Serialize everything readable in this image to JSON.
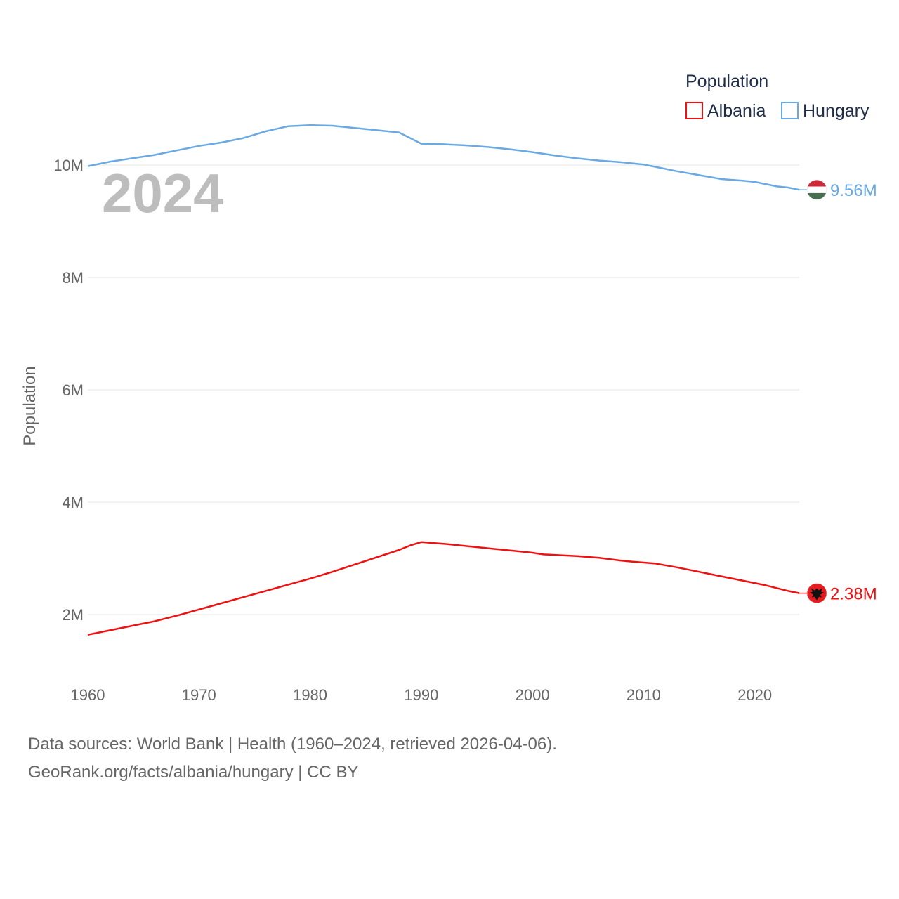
{
  "chart_data": {
    "type": "line",
    "title": "",
    "year_label": "2024",
    "xlabel": "",
    "ylabel": "Population",
    "xlim": [
      1960,
      2024
    ],
    "ylim": [
      1000000,
      11000000
    ],
    "x_ticks": [
      1960,
      1970,
      1980,
      1990,
      2000,
      2010,
      2020
    ],
    "x_tick_labels": [
      "1960",
      "1970",
      "1980",
      "1990",
      "2000",
      "2010",
      "2020"
    ],
    "y_ticks": [
      2000000,
      4000000,
      6000000,
      8000000,
      10000000
    ],
    "y_tick_labels": [
      "2M",
      "4M",
      "6M",
      "8M",
      "10M"
    ],
    "legend": {
      "title": "Population",
      "position": "top-right"
    },
    "series": [
      {
        "name": "Albania",
        "color": "#ee1111",
        "end_label": "2.38M",
        "flag_icon": "albania-flag-icon",
        "x": [
          1960,
          1962,
          1964,
          1966,
          1968,
          1970,
          1972,
          1974,
          1976,
          1978,
          1980,
          1982,
          1984,
          1986,
          1988,
          1989,
          1990,
          1992,
          1994,
          1996,
          1998,
          2000,
          2001,
          2004,
          2006,
          2008,
          2009,
          2011,
          2013,
          2015,
          2017,
          2019,
          2021,
          2023,
          2024
        ],
        "values": [
          1640000,
          1720000,
          1800000,
          1880000,
          1980000,
          2090000,
          2200000,
          2310000,
          2420000,
          2530000,
          2640000,
          2760000,
          2890000,
          3020000,
          3150000,
          3230000,
          3290000,
          3260000,
          3220000,
          3180000,
          3140000,
          3100000,
          3070000,
          3040000,
          3010000,
          2960000,
          2940000,
          2910000,
          2840000,
          2760000,
          2680000,
          2600000,
          2520000,
          2420000,
          2380000
        ]
      },
      {
        "name": "Hungary",
        "color": "#6aa9e3",
        "end_label": "9.56M",
        "flag_icon": "hungary-flag-icon",
        "x": [
          1960,
          1962,
          1964,
          1966,
          1968,
          1970,
          1972,
          1974,
          1976,
          1978,
          1980,
          1982,
          1984,
          1986,
          1988,
          1990,
          1992,
          1994,
          1996,
          1998,
          2000,
          2002,
          2004,
          2006,
          2008,
          2010,
          2011,
          2013,
          2015,
          2017,
          2019,
          2020,
          2022,
          2023,
          2024
        ],
        "values": [
          9980000,
          10060000,
          10120000,
          10180000,
          10260000,
          10340000,
          10400000,
          10480000,
          10600000,
          10690000,
          10710000,
          10700000,
          10660000,
          10620000,
          10580000,
          10380000,
          10370000,
          10350000,
          10320000,
          10280000,
          10230000,
          10170000,
          10120000,
          10080000,
          10050000,
          10010000,
          9970000,
          9890000,
          9820000,
          9750000,
          9720000,
          9700000,
          9620000,
          9600000,
          9560000
        ]
      }
    ]
  },
  "footer": {
    "line1": "Data sources: World Bank | Health (1960–2024, retrieved 2026-04-06).",
    "line2": "GeoRank.org/facts/albania/hungary | CC BY"
  }
}
